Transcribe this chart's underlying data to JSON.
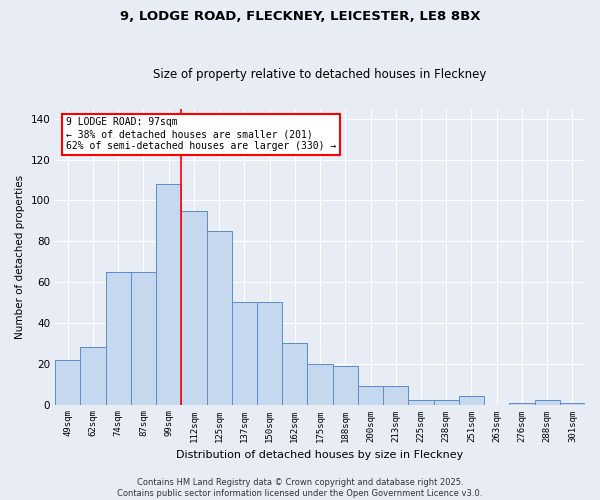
{
  "title1": "9, LODGE ROAD, FLECKNEY, LEICESTER, LE8 8BX",
  "title2": "Size of property relative to detached houses in Fleckney",
  "xlabel": "Distribution of detached houses by size in Fleckney",
  "ylabel": "Number of detached properties",
  "categories": [
    "49sqm",
    "62sqm",
    "74sqm",
    "87sqm",
    "99sqm",
    "112sqm",
    "125sqm",
    "137sqm",
    "150sqm",
    "162sqm",
    "175sqm",
    "188sqm",
    "200sqm",
    "213sqm",
    "225sqm",
    "238sqm",
    "251sqm",
    "263sqm",
    "276sqm",
    "288sqm",
    "301sqm"
  ],
  "values": [
    22,
    28,
    65,
    65,
    108,
    95,
    85,
    50,
    50,
    30,
    20,
    19,
    9,
    9,
    2,
    2,
    4,
    0,
    1,
    2,
    1
  ],
  "bar_color": "#c5d8ee",
  "bar_edge_color": "#5b8cc8",
  "background_color": "#e8edf5",
  "grid_color": "#ffffff",
  "red_line_x": 4.5,
  "annotation_text": "9 LODGE ROAD: 97sqm\n← 38% of detached houses are smaller (201)\n62% of semi-detached houses are larger (330) →",
  "annotation_box_color": "white",
  "annotation_box_edge_color": "red",
  "footer1": "Contains HM Land Registry data © Crown copyright and database right 2025.",
  "footer2": "Contains public sector information licensed under the Open Government Licence v3.0.",
  "ylim": [
    0,
    145
  ],
  "yticks": [
    0,
    20,
    40,
    60,
    80,
    100,
    120,
    140
  ]
}
